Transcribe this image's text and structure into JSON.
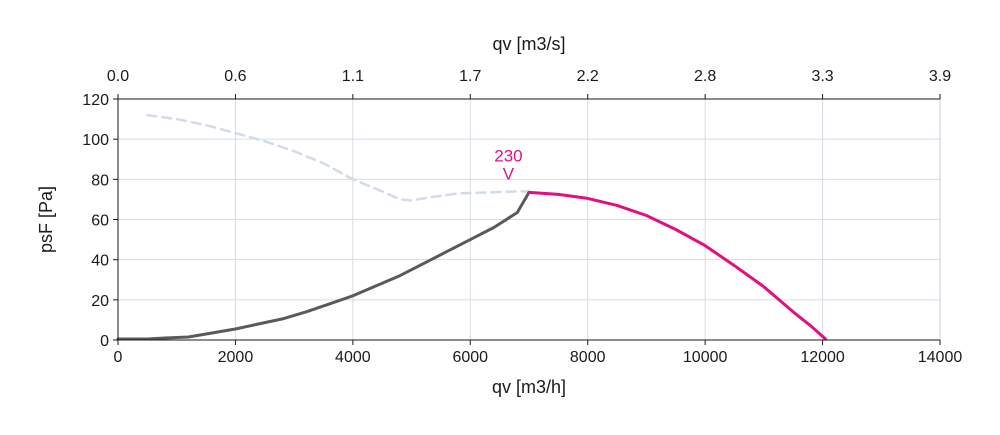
{
  "chart_data": {
    "type": "line",
    "xlabel": "qv [m3/h]",
    "x2label": "qv [m3/s]",
    "ylabel": "psF [Pa]",
    "xlim": [
      0,
      14000
    ],
    "ylim": [
      0,
      120
    ],
    "x_ticks": [
      "0",
      "2000",
      "4000",
      "6000",
      "8000",
      "10000",
      "12000",
      "14000"
    ],
    "x2_ticks": [
      "0.0",
      "0.6",
      "1.1",
      "1.7",
      "2.2",
      "2.8",
      "3.3",
      "3.9"
    ],
    "y_ticks": [
      "0",
      "20",
      "40",
      "60",
      "80",
      "100",
      "120"
    ],
    "grid": true,
    "annotation": {
      "text_top": "230",
      "text_bottom": "V",
      "x": 6650,
      "y": 85,
      "color": "#e0117f"
    },
    "series": [
      {
        "name": "",
        "style": "dashed",
        "color": "#d2dbe8",
        "points": [
          [
            500,
            112
          ],
          [
            1000,
            110
          ],
          [
            1500,
            107
          ],
          [
            2000,
            103
          ],
          [
            2500,
            99
          ],
          [
            3000,
            94
          ],
          [
            3500,
            88
          ],
          [
            4000,
            80
          ],
          [
            4500,
            74
          ],
          [
            4800,
            70
          ],
          [
            5000,
            69.5
          ],
          [
            5300,
            71
          ],
          [
            5800,
            73
          ],
          [
            6300,
            73.5
          ],
          [
            6800,
            74
          ],
          [
            7000,
            74
          ]
        ]
      },
      {
        "name": "",
        "style": "solid",
        "color": "#5a5a5a",
        "points": [
          [
            0,
            0.5
          ],
          [
            500,
            0.5
          ],
          [
            800,
            1
          ],
          [
            1200,
            1.5
          ],
          [
            1600,
            3.5
          ],
          [
            2000,
            5.5
          ],
          [
            2400,
            8
          ],
          [
            2800,
            10.5
          ],
          [
            3200,
            14
          ],
          [
            3600,
            18
          ],
          [
            4000,
            22
          ],
          [
            4400,
            27
          ],
          [
            4800,
            32
          ],
          [
            5200,
            38
          ],
          [
            5600,
            44
          ],
          [
            6000,
            50
          ],
          [
            6400,
            56
          ],
          [
            6800,
            63.5
          ],
          [
            7000,
            73.5
          ]
        ]
      },
      {
        "name": "",
        "style": "solid",
        "color": "#e0117f",
        "points": [
          [
            7000,
            73.5
          ],
          [
            7500,
            72.5
          ],
          [
            8000,
            70.5
          ],
          [
            8500,
            67
          ],
          [
            9000,
            62
          ],
          [
            9500,
            55
          ],
          [
            10000,
            47
          ],
          [
            10500,
            37
          ],
          [
            11000,
            26.5
          ],
          [
            11500,
            14
          ],
          [
            11800,
            7
          ],
          [
            12050,
            0.5
          ]
        ]
      }
    ]
  }
}
